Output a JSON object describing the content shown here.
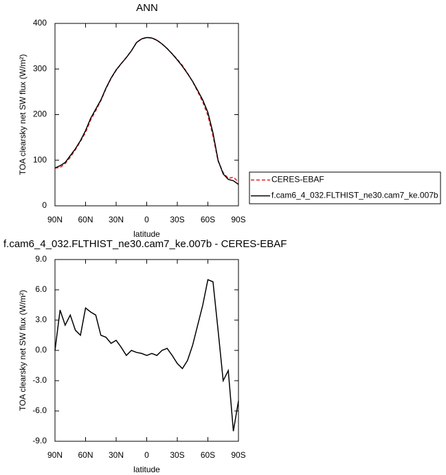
{
  "chart_data": [
    {
      "type": "line",
      "title": "ANN",
      "xlabel": "latitude",
      "ylabel": "TOA clearsky net SW flux (W/m²)",
      "x": [
        90,
        85,
        80,
        75,
        70,
        65,
        60,
        55,
        50,
        45,
        40,
        35,
        30,
        25,
        20,
        15,
        10,
        5,
        0,
        -5,
        -10,
        -15,
        -20,
        -25,
        -30,
        -35,
        -40,
        -45,
        -50,
        -55,
        -60,
        -65,
        -70,
        -75,
        -80,
        -85,
        -90
      ],
      "xlim": [
        90,
        -90
      ],
      "xticks": [
        {
          "value": 90,
          "label": "90N"
        },
        {
          "value": 60,
          "label": "60N"
        },
        {
          "value": 30,
          "label": "30N"
        },
        0,
        {
          "value": -30,
          "label": "30S"
        },
        {
          "value": -60,
          "label": "60S"
        },
        {
          "value": -90,
          "label": "90S"
        }
      ],
      "ylim": [
        0,
        400
      ],
      "yticks": [
        0,
        100,
        200,
        300,
        400
      ],
      "legend": "right",
      "series": [
        {
          "name": "CERES-EBAF",
          "color": "#e41a1c",
          "dashed": true,
          "values": [
            83,
            84,
            92.5,
            106.5,
            123,
            141.5,
            160.8,
            188.2,
            208.5,
            230.5,
            256.7,
            279.3,
            297,
            311.7,
            325.5,
            340,
            358.2,
            366.3,
            369.5,
            368.3,
            363.5,
            355,
            344.8,
            333.5,
            321.3,
            307.8,
            291,
            272.5,
            250.5,
            227.5,
            198,
            153.2,
            98,
            73,
            60,
            63,
            52
          ]
        },
        {
          "name": "f.cam6_4_032.FLTHIST_ne30.cam7_ke.007b",
          "color": "#000000",
          "dashed": false,
          "values": [
            83,
            88,
            95,
            110,
            125,
            143,
            165,
            192,
            212,
            232,
            258,
            280,
            298,
            312,
            325,
            340,
            358,
            366,
            369,
            368,
            363,
            355,
            345,
            333,
            320,
            306,
            290,
            273,
            253,
            232,
            205,
            160,
            100,
            70,
            58,
            55,
            47
          ]
        }
      ]
    },
    {
      "type": "line",
      "title": "f.cam6_4_032.FLTHIST_ne30.cam7_ke.007b - CERES-EBAF",
      "xlabel": "latitude",
      "ylabel": "TOA clearsky net SW flux (W/m²)",
      "x": [
        90,
        85,
        80,
        75,
        70,
        65,
        60,
        55,
        50,
        45,
        40,
        35,
        30,
        25,
        20,
        15,
        10,
        5,
        0,
        -5,
        -10,
        -15,
        -20,
        -25,
        -30,
        -35,
        -40,
        -45,
        -50,
        -55,
        -60,
        -65,
        -70,
        -75,
        -80,
        -85,
        -90
      ],
      "xlim": [
        90,
        -90
      ],
      "xticks": [
        {
          "value": 90,
          "label": "90N"
        },
        {
          "value": 60,
          "label": "60N"
        },
        {
          "value": 30,
          "label": "30N"
        },
        0,
        {
          "value": -30,
          "label": "30S"
        },
        {
          "value": -60,
          "label": "60S"
        },
        {
          "value": -90,
          "label": "90S"
        }
      ],
      "ylim": [
        -9,
        9
      ],
      "yticks": [
        {
          "value": 9,
          "label": "9.0"
        },
        {
          "value": 6,
          "label": "6.0"
        },
        {
          "value": 3,
          "label": "3.0"
        },
        {
          "value": 0,
          "label": "0.0"
        },
        {
          "value": -3,
          "label": "-3.0"
        },
        {
          "value": -6,
          "label": "-6.0"
        },
        {
          "value": -9,
          "label": "-9.0"
        }
      ],
      "series": [
        {
          "color": "#000000",
          "dashed": false,
          "values": [
            0,
            4,
            2.5,
            3.5,
            2,
            1.5,
            4.2,
            3.8,
            3.5,
            1.5,
            1.3,
            0.7,
            1.0,
            0.3,
            -0.5,
            0,
            -0.2,
            -0.3,
            -0.5,
            -0.3,
            -0.5,
            0,
            0.2,
            -0.5,
            -1.3,
            -1.8,
            -1.0,
            0.5,
            2.5,
            4.5,
            7.0,
            6.8,
            2,
            -3,
            -2,
            -8,
            -5
          ]
        }
      ]
    }
  ]
}
